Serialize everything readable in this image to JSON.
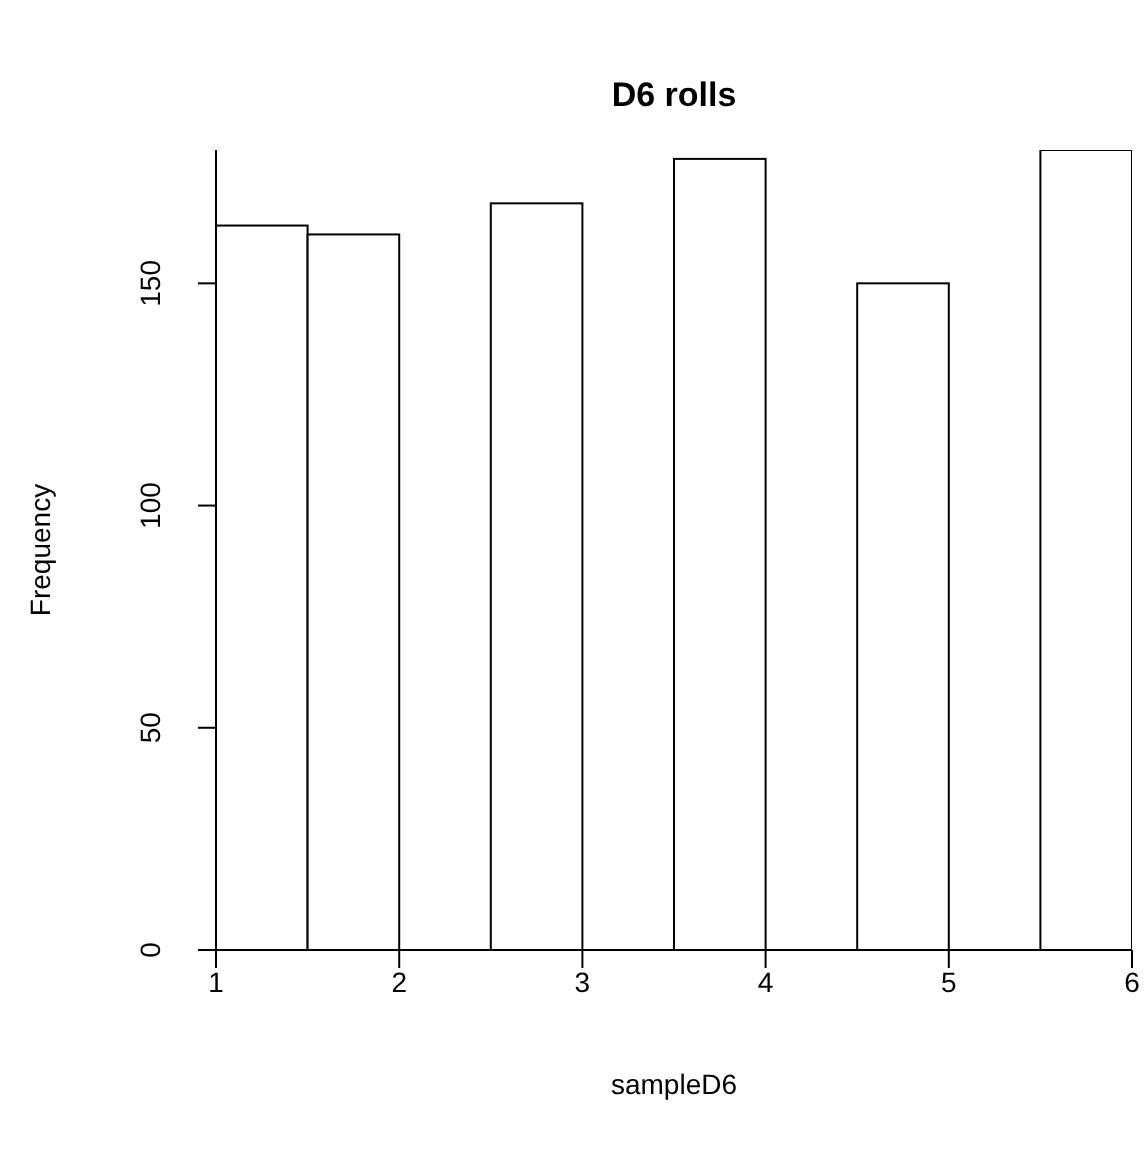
{
  "chart_data": {
    "type": "histogram",
    "title": "D6 rolls",
    "xlabel": "sampleD6",
    "ylabel": "Frequency",
    "bins": [
      1,
      1.5,
      2,
      2.5,
      3,
      3.5,
      4,
      4.5,
      5,
      5.5,
      6
    ],
    "values": [
      163,
      161,
      0,
      168,
      0,
      178,
      0,
      150,
      0,
      180
    ],
    "color": "#ffffff",
    "xlim": [
      1,
      6
    ],
    "xticks": [
      1,
      2,
      3,
      4,
      5,
      6
    ],
    "ylim": [
      0,
      180
    ],
    "yticks": [
      0,
      50,
      100,
      150
    ],
    "grid": false
  }
}
